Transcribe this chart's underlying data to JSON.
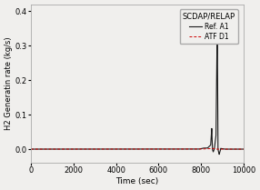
{
  "title": "",
  "xlabel": "Time (sec)",
  "ylabel": "H2 Generatin rate (kg/s)",
  "legend_title": "SCDAP/RELAP",
  "legend_entries": [
    "Ref. A1",
    "ATF D1"
  ],
  "xlim": [
    0,
    10000
  ],
  "ylim": [
    -0.04,
    0.42
  ],
  "xticks": [
    0,
    2000,
    4000,
    6000,
    8000,
    10000
  ],
  "yticks": [
    0.0,
    0.1,
    0.2,
    0.3,
    0.4
  ],
  "background_color": "#f0efed",
  "plot_bg_color": "#f0efed",
  "line1_color": "#1a1a1a",
  "line2_color": "#cc0000",
  "figsize": [
    2.86,
    2.09
  ],
  "dpi": 100
}
